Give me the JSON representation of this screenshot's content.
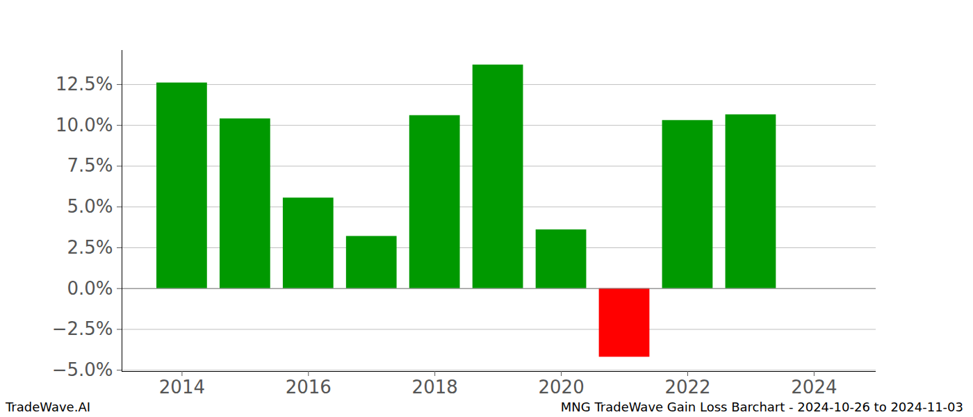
{
  "chart_data": {
    "type": "bar",
    "x": [
      2014,
      2015,
      2016,
      2017,
      2018,
      2019,
      2020,
      2021,
      2022,
      2023
    ],
    "values": [
      12.6,
      10.4,
      5.55,
      3.2,
      10.6,
      13.7,
      3.6,
      -4.2,
      10.3,
      10.65
    ],
    "colors": [
      "#009900",
      "#009900",
      "#009900",
      "#009900",
      "#009900",
      "#009900",
      "#009900",
      "#ff0000",
      "#009900",
      "#009900"
    ],
    "xlim": [
      2013.05,
      2024.98
    ],
    "xticks": [
      2014,
      2016,
      2018,
      2020,
      2022,
      2024
    ],
    "ylim": [
      -5.08,
      14.59
    ],
    "yticks": [
      {
        "value": -5,
        "label": "−5.0%"
      },
      {
        "value": -2.5,
        "label": "−2.5%"
      },
      {
        "value": 0,
        "label": "0.0%"
      },
      {
        "value": 2.5,
        "label": "2.5%"
      },
      {
        "value": 5,
        "label": "5.0%"
      },
      {
        "value": 7.5,
        "label": "7.5%"
      },
      {
        "value": 10,
        "label": "10.0%"
      },
      {
        "value": 12.5,
        "label": "12.5%"
      }
    ],
    "grid": true,
    "annotations": [
      "TradeWave.AI",
      "MNG TradeWave Gain Loss Barchart - 2024-10-26 to 2024-11-03"
    ]
  }
}
